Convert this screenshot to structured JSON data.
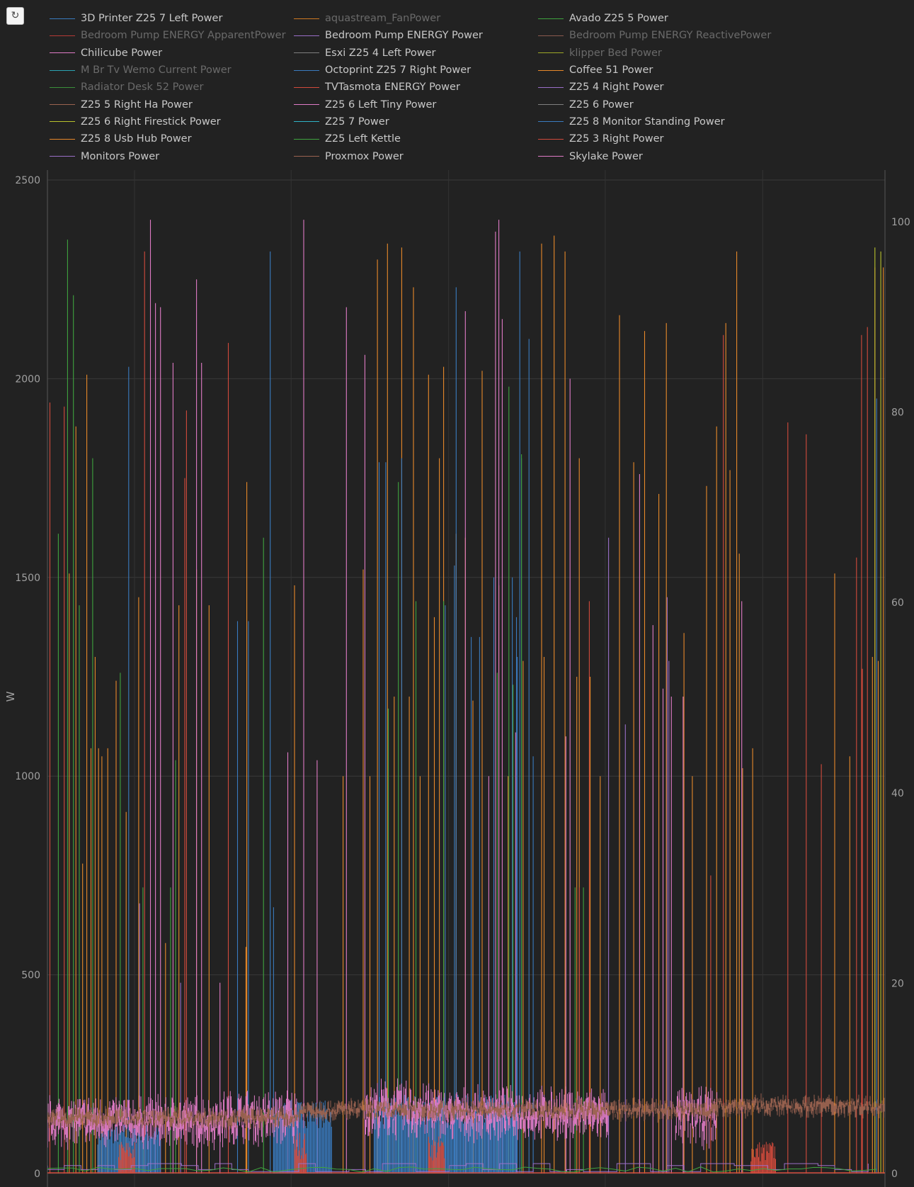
{
  "toolbar": {
    "reset_label": "↻"
  },
  "chart_data": {
    "type": "line",
    "title": "",
    "ylabel": "W",
    "ylim": [
      0,
      2500
    ],
    "y2lim": [
      0,
      100
    ],
    "yticks": [
      "0",
      "500",
      "1000",
      "1500",
      "2000",
      "2500"
    ],
    "y2ticks": [
      "0",
      "20",
      "40",
      "60",
      "80",
      "100"
    ],
    "grid": true,
    "legend": "top",
    "series": [
      {
        "name": "3D Printer Z25 7 Left Power",
        "color": "#3a7bbf",
        "visible": true
      },
      {
        "name": "aquastream_FanPower",
        "color": "#d07a22",
        "visible": false
      },
      {
        "name": "Avado Z25 5 Power",
        "color": "#3fa33f",
        "visible": true
      },
      {
        "name": "Bedroom Pump ENERGY ApparentPower",
        "color": "#b63a36",
        "visible": false
      },
      {
        "name": "Bedroom Pump ENERGY Power",
        "color": "#9b6fc8",
        "visible": true
      },
      {
        "name": "Bedroom Pump ENERGY ReactivePower",
        "color": "#8c5a4f",
        "visible": false
      },
      {
        "name": "Chilicube Power",
        "color": "#e07bc6",
        "visible": true
      },
      {
        "name": "Esxi Z25 4 Left Power",
        "color": "#7f7f7f",
        "visible": true
      },
      {
        "name": "klipper Bed Power",
        "color": "#9da828",
        "visible": false
      },
      {
        "name": "M Br Tv Wemo Current Power",
        "color": "#2aa3b3",
        "visible": false
      },
      {
        "name": "Octoprint Z25 7 Right Power",
        "color": "#3a7bbf",
        "visible": true
      },
      {
        "name": "Coffee 51 Power",
        "color": "#e8892a",
        "visible": true
      },
      {
        "name": "Radiator Desk 52 Power",
        "color": "#3a8f3a",
        "visible": false
      },
      {
        "name": "TVTasmota ENERGY Power",
        "color": "#d24a3c",
        "visible": true
      },
      {
        "name": "Z25 4 Right Power",
        "color": "#9b6fc8",
        "visible": true
      },
      {
        "name": "Z25 5 Right Ha Power",
        "color": "#9b6350",
        "visible": true
      },
      {
        "name": "Z25 6 Left Tiny Power",
        "color": "#e07bc6",
        "visible": true
      },
      {
        "name": "Z25 6 Power",
        "color": "#7f7f7f",
        "visible": true
      },
      {
        "name": "Z25 6 Right Firestick Power",
        "color": "#b9c22c",
        "visible": true
      },
      {
        "name": "Z25 7 Power",
        "color": "#2fb3c6",
        "visible": true
      },
      {
        "name": "Z25 8 Monitor Standing Power",
        "color": "#3a7bbf",
        "visible": true
      },
      {
        "name": "Z25 8 Usb Hub Power",
        "color": "#e8892a",
        "visible": true
      },
      {
        "name": "Z25 Left Kettle",
        "color": "#3fa33f",
        "visible": true
      },
      {
        "name": "Z25 3 Right Power",
        "color": "#d24a3c",
        "visible": true
      },
      {
        "name": "Monitors Power",
        "color": "#9b6fc8",
        "visible": true
      },
      {
        "name": "Proxmox Power",
        "color": "#9b6350",
        "visible": true
      },
      {
        "name": "Skylake Power",
        "color": "#e07bc6",
        "visible": true
      }
    ],
    "spikes": {
      "orange": [
        [
          0.026,
          1510
        ],
        [
          0.034,
          1880
        ],
        [
          0.042,
          780
        ],
        [
          0.047,
          2010
        ],
        [
          0.052,
          1070
        ],
        [
          0.057,
          1300
        ],
        [
          0.061,
          1070
        ],
        [
          0.065,
          1050
        ],
        [
          0.072,
          1070
        ],
        [
          0.082,
          1240
        ],
        [
          0.094,
          910
        ],
        [
          0.109,
          1450
        ],
        [
          0.141,
          580
        ],
        [
          0.157,
          1430
        ],
        [
          0.178,
          1520
        ],
        [
          0.193,
          1430
        ],
        [
          0.237,
          570
        ],
        [
          0.238,
          1740
        ],
        [
          0.295,
          1480
        ],
        [
          0.353,
          1000
        ],
        [
          0.377,
          1520
        ],
        [
          0.385,
          1000
        ],
        [
          0.394,
          2300
        ],
        [
          0.406,
          2340
        ],
        [
          0.414,
          1200
        ],
        [
          0.423,
          2330
        ],
        [
          0.432,
          1200
        ],
        [
          0.437,
          2230
        ],
        [
          0.445,
          1000
        ],
        [
          0.455,
          2010
        ],
        [
          0.462,
          1400
        ],
        [
          0.468,
          1800
        ],
        [
          0.473,
          2030
        ],
        [
          0.488,
          1610
        ],
        [
          0.499,
          1600
        ],
        [
          0.508,
          1190
        ],
        [
          0.519,
          2020
        ],
        [
          0.539,
          1480
        ],
        [
          0.55,
          1000
        ],
        [
          0.568,
          1290
        ],
        [
          0.59,
          2340
        ],
        [
          0.593,
          1300
        ],
        [
          0.605,
          2360
        ],
        [
          0.618,
          2320
        ],
        [
          0.632,
          1250
        ],
        [
          0.635,
          1800
        ],
        [
          0.648,
          1250
        ],
        [
          0.66,
          1000
        ],
        [
          0.683,
          2160
        ],
        [
          0.7,
          1790
        ],
        [
          0.713,
          2120
        ],
        [
          0.73,
          1710
        ],
        [
          0.739,
          2140
        ],
        [
          0.76,
          1360
        ],
        [
          0.77,
          1000
        ],
        [
          0.787,
          1730
        ],
        [
          0.799,
          1880
        ],
        [
          0.81,
          2140
        ],
        [
          0.815,
          1770
        ],
        [
          0.823,
          2320
        ],
        [
          0.826,
          1560
        ],
        [
          0.83,
          1020
        ],
        [
          0.842,
          1070
        ],
        [
          0.94,
          1510
        ],
        [
          0.958,
          1050
        ],
        [
          0.985,
          1300
        ],
        [
          0.992,
          1290
        ],
        [
          0.998,
          2280
        ]
      ],
      "red": [
        [
          0.003,
          1940
        ],
        [
          0.02,
          1930
        ],
        [
          0.116,
          2320
        ],
        [
          0.164,
          1750
        ],
        [
          0.166,
          1920
        ],
        [
          0.216,
          2090
        ],
        [
          0.635,
          720
        ],
        [
          0.647,
          1440
        ],
        [
          0.792,
          750
        ],
        [
          0.807,
          2110
        ],
        [
          0.884,
          1890
        ],
        [
          0.906,
          1860
        ],
        [
          0.924,
          1030
        ],
        [
          0.966,
          1550
        ],
        [
          0.973,
          1270
        ],
        [
          0.988,
          2280
        ],
        [
          0.979,
          2130
        ],
        [
          0.972,
          2110
        ]
      ],
      "pink": [
        [
          0.123,
          2400
        ],
        [
          0.129,
          2190
        ],
        [
          0.135,
          2180
        ],
        [
          0.15,
          2040
        ],
        [
          0.178,
          2250
        ],
        [
          0.184,
          2040
        ],
        [
          0.206,
          480
        ],
        [
          0.287,
          1060
        ],
        [
          0.306,
          2400
        ],
        [
          0.322,
          1040
        ],
        [
          0.357,
          2180
        ],
        [
          0.379,
          2060
        ],
        [
          0.499,
          2170
        ],
        [
          0.527,
          1000
        ],
        [
          0.535,
          2370
        ],
        [
          0.539,
          2400
        ],
        [
          0.543,
          2150
        ],
        [
          0.559,
          1110
        ],
        [
          0.619,
          1100
        ],
        [
          0.624,
          2000
        ],
        [
          0.707,
          1760
        ],
        [
          0.723,
          1380
        ],
        [
          0.735,
          1220
        ],
        [
          0.745,
          1200
        ],
        [
          0.759,
          1200
        ],
        [
          0.829,
          1440
        ]
      ],
      "blue": [
        [
          0.097,
          2030
        ],
        [
          0.227,
          1390
        ],
        [
          0.24,
          1390
        ],
        [
          0.266,
          2320
        ],
        [
          0.27,
          670
        ],
        [
          0.396,
          1790
        ],
        [
          0.404,
          1790
        ],
        [
          0.423,
          1800
        ],
        [
          0.475,
          1430
        ],
        [
          0.486,
          1530
        ],
        [
          0.488,
          2230
        ],
        [
          0.506,
          1350
        ],
        [
          0.516,
          1350
        ],
        [
          0.533,
          1500
        ],
        [
          0.555,
          1500
        ],
        [
          0.566,
          1800
        ],
        [
          0.56,
          1400
        ],
        [
          0.561,
          1300
        ],
        [
          0.564,
          2320
        ],
        [
          0.575,
          2100
        ],
        [
          0.58,
          1050
        ],
        [
          0.99,
          1950
        ]
      ],
      "green": [
        [
          0.013,
          1610
        ],
        [
          0.024,
          2350
        ],
        [
          0.031,
          2210
        ],
        [
          0.038,
          1430
        ],
        [
          0.054,
          1800
        ],
        [
          0.087,
          1260
        ],
        [
          0.114,
          720
        ],
        [
          0.147,
          720
        ],
        [
          0.153,
          1040
        ],
        [
          0.258,
          1600
        ],
        [
          0.407,
          1170
        ],
        [
          0.419,
          1740
        ],
        [
          0.44,
          1440
        ],
        [
          0.473,
          1440
        ],
        [
          0.537,
          1260
        ],
        [
          0.551,
          1980
        ],
        [
          0.556,
          1230
        ],
        [
          0.566,
          1810
        ],
        [
          0.63,
          720
        ],
        [
          0.64,
          720
        ]
      ],
      "lime": [
        [
          0.995,
          2320
        ],
        [
          0.988,
          2330
        ]
      ],
      "purple": [
        [
          0.11,
          680
        ],
        [
          0.159,
          480
        ],
        [
          0.67,
          1600
        ],
        [
          0.69,
          1130
        ],
        [
          0.74,
          1450
        ],
        [
          0.742,
          1290
        ]
      ]
    }
  }
}
